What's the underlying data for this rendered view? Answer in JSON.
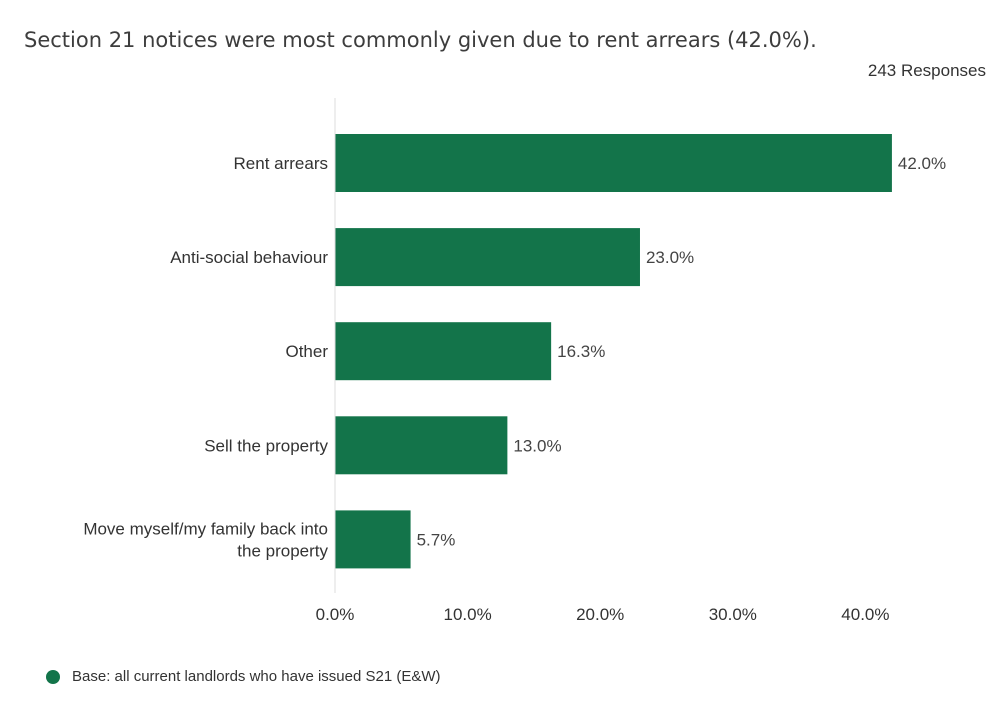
{
  "title": "Section 21 notices were most commonly given due to rent arrears (42.0%).",
  "responses_label": "243 Responses",
  "legend": {
    "label": "Base: all current landlords who have issued S21 (E&W)",
    "color": "#13744a"
  },
  "chart_data": {
    "type": "bar",
    "orientation": "horizontal",
    "categories": [
      "Rent arrears",
      "Anti-social behaviour",
      "Other",
      "Sell the property",
      "Move myself/my family back into the property"
    ],
    "values": [
      42.0,
      23.0,
      16.3,
      13.0,
      5.7
    ],
    "value_labels": [
      "42.0%",
      "23.0%",
      "16.3%",
      "13.0%",
      "5.7%"
    ],
    "ticks": [
      0,
      10,
      20,
      30,
      40
    ],
    "tick_labels": [
      "0.0%",
      "10.0%",
      "20.0%",
      "30.0%",
      "40.0%"
    ],
    "xlim": [
      0,
      42
    ],
    "bar_color": "#13744a",
    "grid": false,
    "legend_position": "bottom-left"
  }
}
